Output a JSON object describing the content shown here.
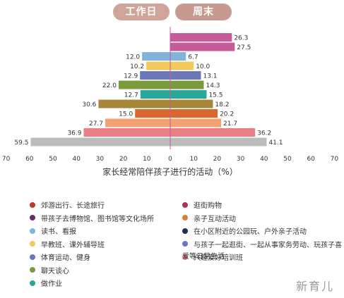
{
  "header": {
    "left_label": "工作日",
    "right_label": "周末"
  },
  "chart_data": {
    "type": "bar",
    "orientation": "diverging-horizontal",
    "xlabel": "家长经常陪伴孩子进行的活动（%）",
    "xlim": [
      -70,
      70
    ],
    "x_ticks": [
      "70",
      "60",
      "50",
      "40",
      "30",
      "20",
      "10",
      "0",
      "10",
      "20",
      "30",
      "40",
      "50",
      "60",
      "70"
    ],
    "rows": [
      {
        "category": "逛街购物",
        "workday": null,
        "weekend": 26.3,
        "color": "#c65b9a",
        "workday_label": "",
        "weekend_label": "26.3"
      },
      {
        "category": "亲子互动活动",
        "workday": null,
        "weekend": 27.5,
        "color": "#c65b9a",
        "workday_label": "",
        "weekend_label": "27.5"
      },
      {
        "category": "读书、看报",
        "workday": 12.0,
        "weekend": 6.7,
        "color": "#82b4d9",
        "workday_label": "12.0",
        "weekend_label": "6.7"
      },
      {
        "category": "早教班、课外辅导班",
        "workday": 10.2,
        "weekend": 10.0,
        "color": "#f2c95c",
        "workday_label": "10.2",
        "weekend_label": "10.0"
      },
      {
        "category": "体育运动、健身",
        "workday": 12.9,
        "weekend": 13.1,
        "color": "#6b78b8",
        "workday_label": "12.9",
        "weekend_label": "13.1"
      },
      {
        "category": "聊天谈心",
        "workday": 22.0,
        "weekend": 14.3,
        "color": "#7a9b3c",
        "workday_label": "22.0",
        "weekend_label": "14.3"
      },
      {
        "category": "做作业",
        "workday": 12.7,
        "weekend": 15.5,
        "color": "#2aa79b",
        "workday_label": "12.7",
        "weekend_label": "15.5"
      },
      {
        "category": "与孩子一起逛街、一起从事家务劳动、玩孩子喜爱等日常生活",
        "workday": 30.6,
        "weekend": 18.2,
        "color": "#a88638",
        "workday_label": "30.6",
        "weekend_label": "18.2"
      },
      {
        "category": "在小区附近的公园玩、户外亲子活动",
        "workday": 15.0,
        "weekend": 20.2,
        "color": "#d9662c",
        "workday_label": "15.0",
        "weekend_label": "20.2"
      },
      {
        "category": "兴趣爱好培训班",
        "workday": 27.7,
        "weekend": 21.7,
        "color": "#f2a273",
        "workday_label": "27.7",
        "weekend_label": "21.7"
      },
      {
        "category": "郊游出行、长途旅行",
        "workday": 36.9,
        "weekend": 36.2,
        "color": "#ea7e85",
        "workday_label": "36.9",
        "weekend_label": "36.2"
      },
      {
        "category": "看电视、上网",
        "workday": 59.5,
        "weekend": 41.1,
        "color": "#bcbcbc",
        "workday_label": "59.5",
        "weekend_label": "41.1"
      }
    ],
    "legend": [
      {
        "label": "郊游出行、长途旅行",
        "color": "#c0392b"
      },
      {
        "label": "带孩子去博物馆、图书馆等文化场所",
        "color": "#6a2d6e"
      },
      {
        "label": "读书、看报",
        "color": "#82b4d9"
      },
      {
        "label": "早教班、课外辅导班",
        "color": "#f2c95c"
      },
      {
        "label": "体育运动、健身",
        "color": "#6b78b8"
      },
      {
        "label": "聊天谈心",
        "color": "#7a9b3c"
      },
      {
        "label": "做作业",
        "color": "#2aa79b"
      },
      {
        "label": "逛街购物",
        "color": "#b0305a"
      },
      {
        "label": "亲子互动活动",
        "color": "#e07a3a"
      },
      {
        "label": "在小区附近的公园玩、户外亲子活动",
        "color": "#1f3050"
      },
      {
        "label": "与孩子一起逛街、一起从事家务劳动、玩孩子喜",
        "color": "#6b78b8"
      },
      {
        "label": "兴趣爱好培训班",
        "color": "#ea7e85"
      }
    ],
    "legend_continuation": "爱等日常生活"
  },
  "watermark": "新育儿"
}
